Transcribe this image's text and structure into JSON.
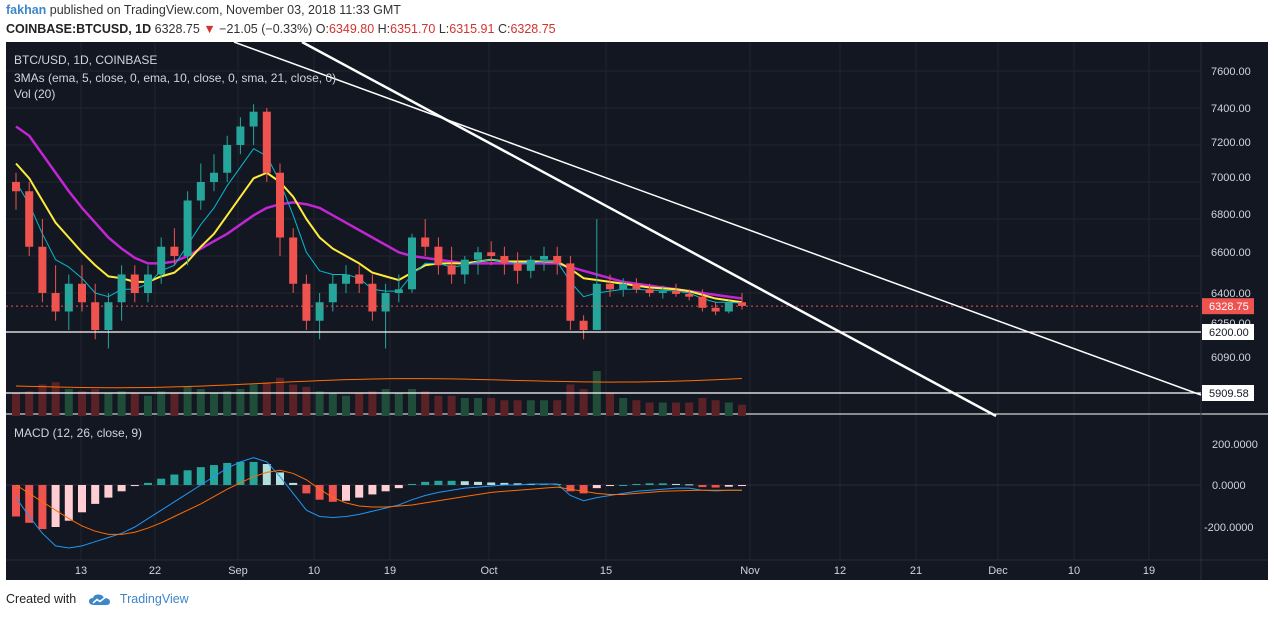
{
  "header": {
    "author": "fakhan",
    "published_text": " published on TradingView.com, November 03, 2018 11:33 GMT",
    "symbol": "COINBASE:BTCUSD, 1D",
    "last": "6328.75",
    "change_arrow": "▼",
    "change": "−21.05 (−0.33%)",
    "o_label": "O:",
    "o_value": "6349.80",
    "h_label": "H:",
    "h_value": "6351.70",
    "l_label": "L:",
    "l_value": "6315.91",
    "c_label": "C:",
    "c_value": "6328.75"
  },
  "legend": {
    "main": "BTC/USD, 1D, COINBASE",
    "mas": "3MAs (ema, 5, close, 0, ema, 10, close, 0, sma, 21, close, 0)",
    "vol": "Vol (20)",
    "macd": "MACD (12, 26, close, 9)"
  },
  "colors": {
    "background": "#131722",
    "up": "#26a69a",
    "down": "#ef5350",
    "ema5": "#00bcd4",
    "ema10": "#ffeb3b",
    "sma21": "#c026d3",
    "macd_line": "#2196f3",
    "signal_line": "#ff6d00",
    "trendline": "#ffffff",
    "accent": "#3d87c9"
  },
  "price_axis": [
    "7600.00",
    "7400.00",
    "7200.00",
    "7000.00",
    "6800.00",
    "6600.00",
    "6400.00",
    "6250.00",
    "6090.00"
  ],
  "price_tags": {
    "last": "6328.75",
    "level_upper": "6200.00",
    "level_lower": "5909.58"
  },
  "macd_axis": [
    "200.0000",
    "0.0000",
    "-200.0000"
  ],
  "time_axis": [
    "13",
    "22",
    "Sep",
    "10",
    "19",
    "Oct",
    "15",
    "Nov",
    "12",
    "21",
    "Dec",
    "10",
    "19"
  ],
  "chart_data": {
    "type": "candlestick",
    "title": "BTC/USD, 1D, COINBASE",
    "series_ohlc": [
      [
        7000,
        7050,
        6850,
        6950
      ],
      [
        6950,
        7000,
        6600,
        6650
      ],
      [
        6650,
        6800,
        6350,
        6400
      ],
      [
        6400,
        6550,
        6250,
        6300
      ],
      [
        6300,
        6500,
        6200,
        6450
      ],
      [
        6450,
        6550,
        6300,
        6350
      ],
      [
        6350,
        6450,
        6150,
        6200
      ],
      [
        6200,
        6400,
        6100,
        6350
      ],
      [
        6350,
        6550,
        6250,
        6500
      ],
      [
        6500,
        6550,
        6350,
        6400
      ],
      [
        6400,
        6550,
        6350,
        6500
      ],
      [
        6500,
        6700,
        6450,
        6650
      ],
      [
        6650,
        6750,
        6550,
        6600
      ],
      [
        6600,
        6950,
        6550,
        6900
      ],
      [
        6900,
        7100,
        6850,
        7000
      ],
      [
        7000,
        7150,
        6950,
        7050
      ],
      [
        7050,
        7250,
        7000,
        7200
      ],
      [
        7200,
        7350,
        7150,
        7300
      ],
      [
        7300,
        7420,
        7200,
        7380
      ],
      [
        7380,
        7400,
        7000,
        7050
      ],
      [
        7050,
        7100,
        6600,
        6700
      ],
      [
        6700,
        6750,
        6400,
        6450
      ],
      [
        6450,
        6500,
        6200,
        6250
      ],
      [
        6250,
        6400,
        6150,
        6350
      ],
      [
        6350,
        6500,
        6300,
        6450
      ],
      [
        6450,
        6550,
        6400,
        6500
      ],
      [
        6500,
        6550,
        6400,
        6450
      ],
      [
        6450,
        6500,
        6250,
        6300
      ],
      [
        6300,
        6450,
        6100,
        6400
      ],
      [
        6400,
        6500,
        6350,
        6420
      ],
      [
        6420,
        6720,
        6400,
        6700
      ],
      [
        6700,
        6800,
        6600,
        6650
      ],
      [
        6650,
        6700,
        6500,
        6550
      ],
      [
        6550,
        6650,
        6450,
        6500
      ],
      [
        6500,
        6600,
        6450,
        6580
      ],
      [
        6580,
        6650,
        6500,
        6620
      ],
      [
        6620,
        6680,
        6550,
        6600
      ],
      [
        6600,
        6650,
        6500,
        6560
      ],
      [
        6560,
        6620,
        6450,
        6520
      ],
      [
        6520,
        6600,
        6480,
        6580
      ],
      [
        6580,
        6650,
        6520,
        6600
      ],
      [
        6600,
        6650,
        6500,
        6560
      ],
      [
        6560,
        6600,
        6200,
        6250
      ],
      [
        6250,
        6280,
        6150,
        6200
      ],
      [
        6200,
        6800,
        6200,
        6450
      ],
      [
        6450,
        6500,
        6380,
        6420
      ],
      [
        6420,
        6480,
        6380,
        6450
      ],
      [
        6450,
        6480,
        6400,
        6420
      ],
      [
        6420,
        6450,
        6380,
        6400
      ],
      [
        6400,
        6440,
        6370,
        6410
      ],
      [
        6410,
        6450,
        6380,
        6395
      ],
      [
        6395,
        6420,
        6360,
        6380
      ],
      [
        6380,
        6420,
        6300,
        6320
      ],
      [
        6320,
        6350,
        6280,
        6300
      ],
      [
        6300,
        6360,
        6290,
        6350
      ],
      [
        6350,
        6400,
        6310,
        6330
      ]
    ],
    "ema5": [
      7000,
      6880,
      6720,
      6580,
      6540,
      6480,
      6400,
      6380,
      6420,
      6420,
      6450,
      6520,
      6550,
      6660,
      6770,
      6860,
      6980,
      7080,
      7180,
      7140,
      7000,
      6820,
      6620,
      6520,
      6500,
      6500,
      6480,
      6420,
      6410,
      6410,
      6500,
      6560,
      6560,
      6540,
      6550,
      6570,
      6580,
      6570,
      6560,
      6560,
      6570,
      6570,
      6460,
      6380,
      6400,
      6410,
      6420,
      6420,
      6415,
      6415,
      6410,
      6400,
      6370,
      6350,
      6350,
      6345
    ],
    "ema10": [
      7100,
      7020,
      6900,
      6780,
      6700,
      6620,
      6550,
      6490,
      6480,
      6460,
      6460,
      6490,
      6510,
      6570,
      6650,
      6720,
      6820,
      6920,
      7020,
      7050,
      7000,
      6920,
      6800,
      6700,
      6640,
      6600,
      6560,
      6510,
      6490,
      6470,
      6510,
      6550,
      6560,
      6560,
      6560,
      6570,
      6580,
      6570,
      6570,
      6570,
      6570,
      6570,
      6530,
      6480,
      6470,
      6460,
      6450,
      6440,
      6430,
      6425,
      6420,
      6410,
      6390,
      6370,
      6360,
      6350
    ],
    "sma21": [
      7300,
      7250,
      7150,
      7050,
      6950,
      6860,
      6780,
      6700,
      6640,
      6590,
      6560,
      6560,
      6570,
      6600,
      6640,
      6680,
      6720,
      6770,
      6820,
      6860,
      6880,
      6890,
      6880,
      6860,
      6820,
      6780,
      6740,
      6700,
      6660,
      6620,
      6600,
      6590,
      6580,
      6570,
      6560,
      6560,
      6560,
      6560,
      6560,
      6560,
      6560,
      6560,
      6540,
      6520,
      6500,
      6480,
      6460,
      6450,
      6440,
      6430,
      6420,
      6410,
      6400,
      6390,
      6380,
      6370
    ],
    "volume": [
      0.5,
      0.55,
      0.7,
      0.75,
      0.6,
      0.55,
      0.6,
      0.5,
      0.55,
      0.5,
      0.45,
      0.55,
      0.5,
      0.65,
      0.6,
      0.5,
      0.55,
      0.6,
      0.7,
      0.75,
      0.85,
      0.7,
      0.65,
      0.55,
      0.5,
      0.45,
      0.5,
      0.55,
      0.6,
      0.5,
      0.6,
      0.55,
      0.45,
      0.45,
      0.4,
      0.4,
      0.4,
      0.35,
      0.35,
      0.35,
      0.35,
      0.35,
      0.7,
      0.6,
      1.0,
      0.5,
      0.4,
      0.35,
      0.3,
      0.3,
      0.3,
      0.3,
      0.4,
      0.35,
      0.3,
      0.25
    ],
    "macd_hist": [
      -150,
      -180,
      -210,
      -200,
      -170,
      -130,
      -90,
      -60,
      -30,
      -5,
      10,
      30,
      50,
      70,
      85,
      95,
      105,
      110,
      110,
      100,
      60,
      10,
      -40,
      -70,
      -80,
      -75,
      -60,
      -45,
      -30,
      -15,
      5,
      15,
      20,
      20,
      18,
      15,
      12,
      10,
      8,
      5,
      5,
      5,
      -30,
      -40,
      -15,
      -5,
      0,
      5,
      8,
      8,
      5,
      3,
      -10,
      -12,
      -8,
      -5
    ],
    "macd": [
      -60,
      -150,
      -230,
      -290,
      -300,
      -290,
      -270,
      -250,
      -230,
      -200,
      -160,
      -120,
      -80,
      -40,
      0,
      40,
      80,
      110,
      130,
      110,
      40,
      -40,
      -120,
      -150,
      -155,
      -150,
      -140,
      -125,
      -110,
      -95,
      -70,
      -50,
      -35,
      -25,
      -15,
      -10,
      -5,
      0,
      0,
      5,
      5,
      5,
      -50,
      -75,
      -60,
      -50,
      -40,
      -30,
      -25,
      -20,
      -15,
      -15,
      -25,
      -28,
      -25,
      -25
    ],
    "signal": [
      0,
      -40,
      -80,
      -120,
      -160,
      -195,
      -220,
      -235,
      -235,
      -225,
      -205,
      -180,
      -150,
      -120,
      -90,
      -55,
      -20,
      10,
      40,
      60,
      70,
      55,
      25,
      -20,
      -60,
      -85,
      -100,
      -105,
      -105,
      -100,
      -95,
      -85,
      -75,
      -65,
      -55,
      -45,
      -35,
      -30,
      -25,
      -20,
      -15,
      -10,
      -20,
      -30,
      -40,
      -45,
      -45,
      -40,
      -35,
      -30,
      -28,
      -26,
      -25,
      -25,
      -25,
      -25
    ]
  },
  "footer": {
    "created_with": "Created with",
    "brand": "TradingView"
  }
}
